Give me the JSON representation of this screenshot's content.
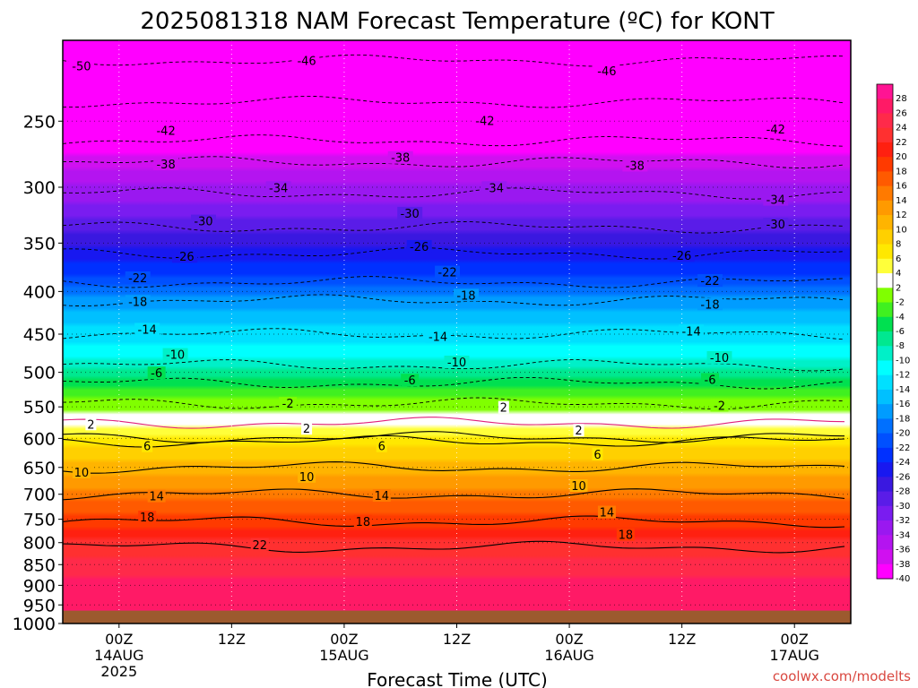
{
  "chart_data": {
    "type": "heatmap",
    "title": "2025081318 NAM Forecast Temperature (ºC) for KONT",
    "xlabel": "Forecast Time (UTC)",
    "ylabel": "",
    "credit": "coolwx.com/modelts",
    "pressure_range": [
      1000,
      200
    ],
    "y_ticks": [
      250,
      300,
      350,
      400,
      450,
      500,
      550,
      600,
      650,
      700,
      750,
      800,
      850,
      900,
      950,
      1000
    ],
    "x_ticks": [
      {
        "hour": 6,
        "label": "00Z",
        "date": "14AUG",
        "year": "2025"
      },
      {
        "hour": 18,
        "label": "12Z",
        "date": "",
        "year": ""
      },
      {
        "hour": 30,
        "label": "00Z",
        "date": "15AUG",
        "year": ""
      },
      {
        "hour": 42,
        "label": "12Z",
        "date": "",
        "year": ""
      },
      {
        "hour": 54,
        "label": "00Z",
        "date": "16AUG",
        "year": ""
      },
      {
        "hour": 66,
        "label": "12Z",
        "date": "",
        "year": ""
      },
      {
        "hour": 78,
        "label": "00Z",
        "date": "17AUG",
        "year": ""
      }
    ],
    "x_range_hours": [
      0,
      84
    ],
    "surface_pressure": 965,
    "ground_color": "#9c5a2e",
    "colorbar": {
      "labels": [
        "28",
        "26",
        "24",
        "22",
        "20",
        "18",
        "16",
        "14",
        "12",
        "10",
        "8",
        "6",
        "4",
        "2",
        "-2",
        "-4",
        "-6",
        "-8",
        "-10",
        "-12",
        "-14",
        "-16",
        "-18",
        "-20",
        "-22",
        "-24",
        "-26",
        "-28",
        "-30",
        "-32",
        "-34",
        "-36",
        "-38",
        "-40"
      ],
      "colors": [
        "#ff1493",
        "#ff1a66",
        "#ff2a4a",
        "#ff3030",
        "#ff2010",
        "#ff3a00",
        "#ff5a00",
        "#ff7a00",
        "#ff9a00",
        "#ffb400",
        "#ffd000",
        "#ffe800",
        "#ffff3a",
        "#ffffff",
        "#80ff00",
        "#40f020",
        "#00e050",
        "#00e890",
        "#00f0c8",
        "#00ffff",
        "#00e0ff",
        "#00c0ff",
        "#009cff",
        "#0070ff",
        "#0050ff",
        "#0030ff",
        "#1818f0",
        "#3a18e0",
        "#5a1ce8",
        "#7a1cf0",
        "#9a18f0",
        "#b414f0",
        "#d010f0",
        "#ff00ff"
      ]
    },
    "isotherm_levels": [
      -50,
      -46,
      -42,
      -38,
      -34,
      -30,
      -26,
      -22,
      -18,
      -14,
      -10,
      -6,
      -2,
      2,
      6,
      10,
      14,
      18,
      22
    ],
    "temperature_profile": [
      {
        "p": 200,
        "t": -52
      },
      {
        "p": 230,
        "t": -47
      },
      {
        "p": 260,
        "t": -43
      },
      {
        "p": 280,
        "t": -38
      },
      {
        "p": 305,
        "t": -34
      },
      {
        "p": 335,
        "t": -30
      },
      {
        "p": 360,
        "t": -26
      },
      {
        "p": 390,
        "t": -22
      },
      {
        "p": 410,
        "t": -18
      },
      {
        "p": 450,
        "t": -14
      },
      {
        "p": 490,
        "t": -10
      },
      {
        "p": 515,
        "t": -6
      },
      {
        "p": 545,
        "t": -2
      },
      {
        "p": 575,
        "t": 2
      },
      {
        "p": 605,
        "t": 6
      },
      {
        "p": 650,
        "t": 10
      },
      {
        "p": 700,
        "t": 14
      },
      {
        "p": 755,
        "t": 18
      },
      {
        "p": 810,
        "t": 22
      },
      {
        "p": 900,
        "t": 26
      },
      {
        "p": 965,
        "t": 27
      }
    ],
    "isotherm_labels": [
      {
        "v": "-50",
        "x": 2,
        "p": 215
      },
      {
        "v": "-46",
        "x": 26,
        "p": 212
      },
      {
        "v": "-46",
        "x": 58,
        "p": 218
      },
      {
        "v": "-42",
        "x": 11,
        "p": 257
      },
      {
        "v": "-42",
        "x": 45,
        "p": 250
      },
      {
        "v": "-42",
        "x": 76,
        "p": 256
      },
      {
        "v": "-38",
        "x": 11,
        "p": 282
      },
      {
        "v": "-38",
        "x": 36,
        "p": 277
      },
      {
        "v": "-38",
        "x": 61,
        "p": 283
      },
      {
        "v": "-34",
        "x": 23,
        "p": 301
      },
      {
        "v": "-34",
        "x": 46,
        "p": 301
      },
      {
        "v": "-34",
        "x": 76,
        "p": 311
      },
      {
        "v": "-30",
        "x": 15,
        "p": 330
      },
      {
        "v": "-30",
        "x": 37,
        "p": 323
      },
      {
        "v": "-30",
        "x": 76,
        "p": 333
      },
      {
        "v": "-26",
        "x": 13,
        "p": 364
      },
      {
        "v": "-26",
        "x": 38,
        "p": 354
      },
      {
        "v": "-26",
        "x": 66,
        "p": 363
      },
      {
        "v": "-22",
        "x": 8,
        "p": 386
      },
      {
        "v": "-22",
        "x": 41,
        "p": 380
      },
      {
        "v": "-22",
        "x": 69,
        "p": 389
      },
      {
        "v": "-18",
        "x": 8,
        "p": 412
      },
      {
        "v": "-18",
        "x": 43,
        "p": 405
      },
      {
        "v": "-18",
        "x": 69,
        "p": 415
      },
      {
        "v": "-14",
        "x": 9,
        "p": 445
      },
      {
        "v": "-14",
        "x": 40,
        "p": 454
      },
      {
        "v": "-14",
        "x": 67,
        "p": 447
      },
      {
        "v": "-10",
        "x": 12,
        "p": 477
      },
      {
        "v": "-10",
        "x": 42,
        "p": 487
      },
      {
        "v": "-10",
        "x": 70,
        "p": 481
      },
      {
        "v": "-6",
        "x": 10,
        "p": 502
      },
      {
        "v": "-6",
        "x": 37,
        "p": 512
      },
      {
        "v": "-6",
        "x": 69,
        "p": 511
      },
      {
        "v": "-2",
        "x": 24,
        "p": 546
      },
      {
        "v": "-2",
        "x": 70,
        "p": 549
      },
      {
        "v": "2",
        "x": 3,
        "p": 578
      },
      {
        "v": "2",
        "x": 26,
        "p": 585
      },
      {
        "v": "2",
        "x": 47,
        "p": 552
      },
      {
        "v": "2",
        "x": 55,
        "p": 588
      },
      {
        "v": "6",
        "x": 9,
        "p": 614
      },
      {
        "v": "6",
        "x": 34,
        "p": 614
      },
      {
        "v": "6",
        "x": 57,
        "p": 628
      },
      {
        "v": "10",
        "x": 2,
        "p": 660
      },
      {
        "v": "10",
        "x": 26,
        "p": 668
      },
      {
        "v": "10",
        "x": 55,
        "p": 685
      },
      {
        "v": "14",
        "x": 10,
        "p": 705
      },
      {
        "v": "14",
        "x": 34,
        "p": 704
      },
      {
        "v": "14",
        "x": 58,
        "p": 737
      },
      {
        "v": "18",
        "x": 9,
        "p": 747
      },
      {
        "v": "18",
        "x": 32,
        "p": 756
      },
      {
        "v": "18",
        "x": 60,
        "p": 784
      },
      {
        "v": "22",
        "x": 21,
        "p": 806
      }
    ]
  }
}
